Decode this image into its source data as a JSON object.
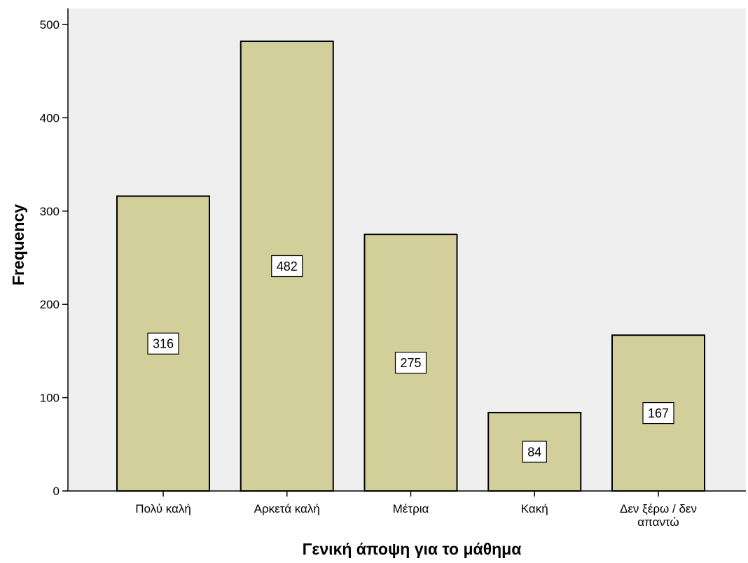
{
  "chart_data": {
    "type": "bar",
    "categories": [
      "Πολύ καλή",
      "Αρκετά καλή",
      "Μέτρια",
      "Κακή",
      "Δεν ξέρω / δεν απαντώ"
    ],
    "category_lines": [
      [
        "Πολύ καλή"
      ],
      [
        "Αρκετά καλή"
      ],
      [
        "Μέτρια"
      ],
      [
        "Κακή"
      ],
      [
        "Δεν ξέρω / δεν",
        "απαντώ"
      ]
    ],
    "values": [
      316,
      482,
      275,
      84,
      167
    ],
    "data_labels": [
      "316",
      "482",
      "275",
      "84",
      "167"
    ],
    "xlabel": "Γενική άποψη για το μάθημα",
    "ylabel": "Frequency",
    "ylim": [
      0,
      500
    ],
    "yticks": [
      0,
      100,
      200,
      300,
      400,
      500
    ],
    "grid": false,
    "colors": {
      "bar_fill": "#d3cf9a",
      "bar_stroke": "#000000",
      "plot_background": "#efefef",
      "label_box_fill": "#ffffff"
    }
  }
}
